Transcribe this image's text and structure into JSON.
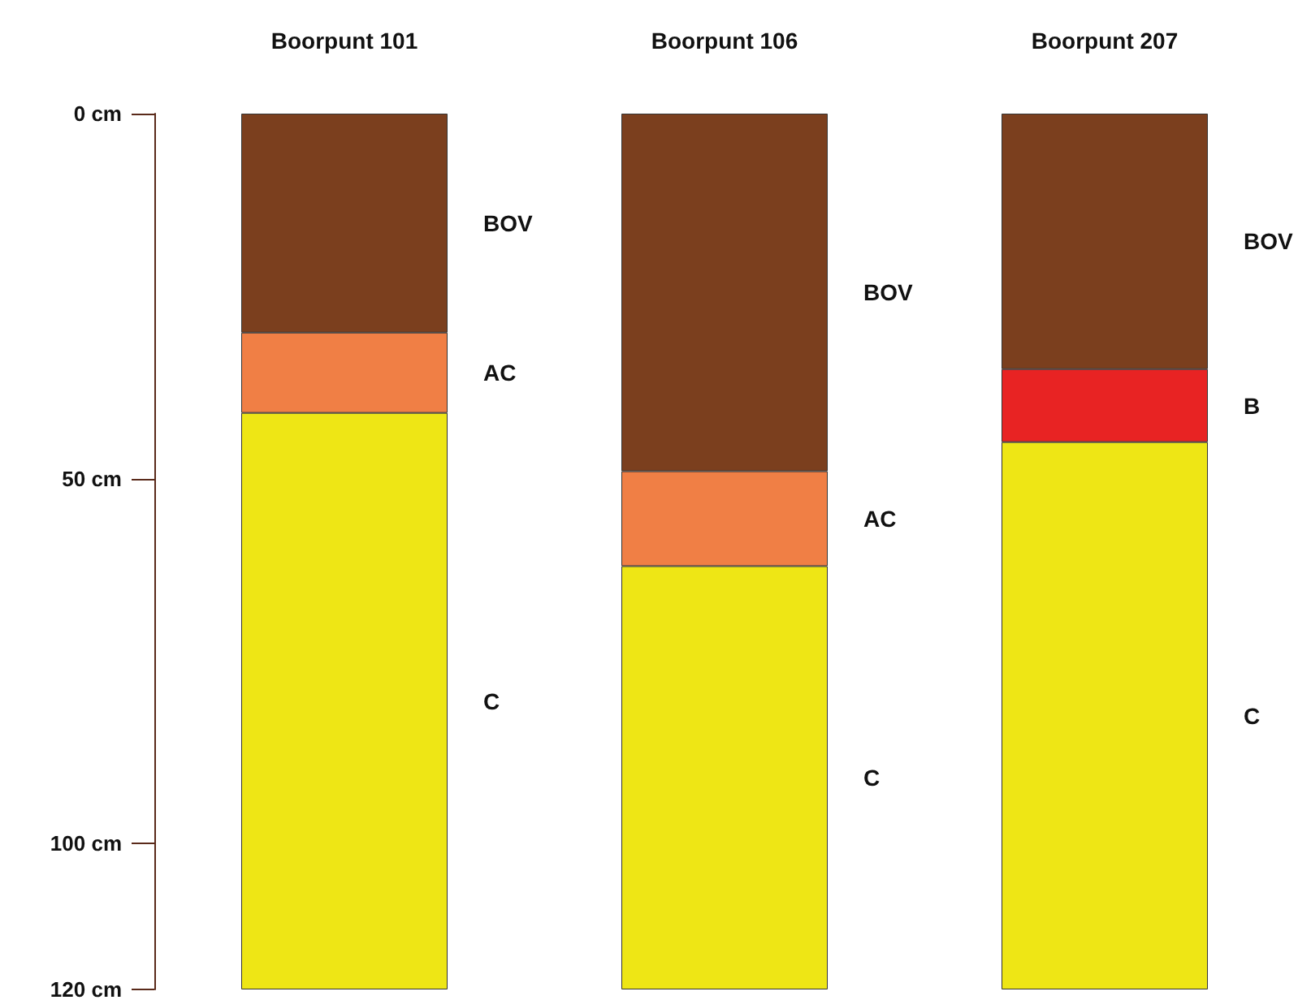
{
  "chart_data": {
    "type": "bar",
    "stacked": true,
    "categories": [
      "Boorpunt 101",
      "Boorpunt 106",
      "Boorpunt 207"
    ],
    "series": [
      {
        "name": "BOV",
        "color": "#7b3f1e",
        "values": [
          30,
          49,
          35
        ]
      },
      {
        "name": "AC",
        "color": "#f07f45",
        "values": [
          11,
          13,
          null
        ]
      },
      {
        "name": "B",
        "color": "#e82323",
        "values": [
          null,
          null,
          10
        ]
      },
      {
        "name": "C",
        "color": "#eee615",
        "values": [
          79,
          58,
          75
        ]
      }
    ],
    "ylim": [
      120,
      0
    ],
    "yticks": [
      {
        "value": 0,
        "label": "0 cm"
      },
      {
        "value": 50,
        "label": "50 cm"
      },
      {
        "value": 100,
        "label": "100 cm"
      },
      {
        "value": 120,
        "label": "120 cm"
      }
    ],
    "grid": false,
    "legend": false
  }
}
